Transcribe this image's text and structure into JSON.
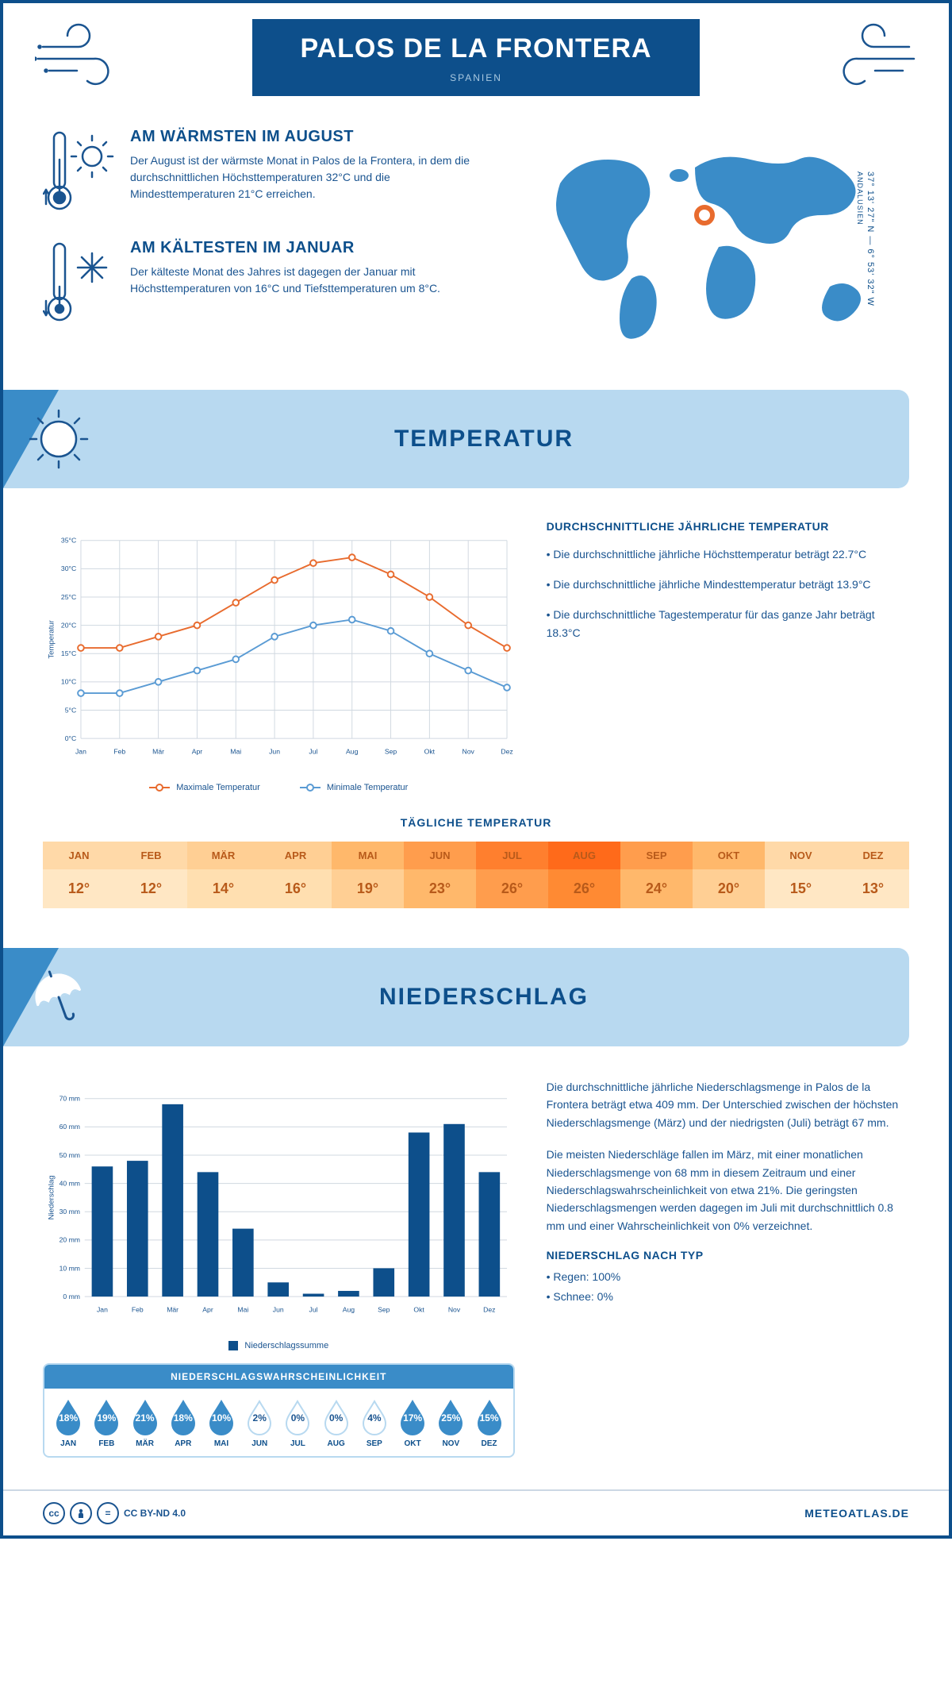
{
  "header": {
    "title": "PALOS DE LA FRONTERA",
    "country": "SPANIEN",
    "coords": "37° 13' 27\" N — 6° 53' 32\" W",
    "region": "ANDALUSIEN"
  },
  "facts": {
    "warm": {
      "title": "AM WÄRMSTEN IM AUGUST",
      "body": "Der August ist der wärmste Monat in Palos de la Frontera, in dem die durchschnittlichen Höchsttemperaturen 32°C und die Mindesttemperaturen 21°C erreichen."
    },
    "cold": {
      "title": "AM KÄLTESTEN IM JANUAR",
      "body": "Der kälteste Monat des Jahres ist dagegen der Januar mit Höchsttemperaturen von 16°C und Tiefsttemperaturen um 8°C."
    }
  },
  "temperature_section": {
    "heading": "TEMPERATUR",
    "side_title": "DURCHSCHNITTLICHE JÄHRLICHE TEMPERATUR",
    "side_bullets": [
      "• Die durchschnittliche jährliche Höchsttemperatur beträgt 22.7°C",
      "• Die durchschnittliche jährliche Mindesttemperatur beträgt 13.9°C",
      "• Die durchschnittliche Tagestemperatur für das ganze Jahr beträgt 18.3°C"
    ],
    "chart": {
      "type": "line",
      "months": [
        "Jan",
        "Feb",
        "Mär",
        "Apr",
        "Mai",
        "Jun",
        "Jul",
        "Aug",
        "Sep",
        "Okt",
        "Nov",
        "Dez"
      ],
      "yaxis_label": "Temperatur",
      "ylim": [
        0,
        35
      ],
      "ytick_step": 5,
      "ytick_suffix": "°C",
      "grid_color": "#d0d8e0",
      "series": [
        {
          "name": "Maximale Temperatur",
          "color": "#e86b2e",
          "values": [
            16,
            16,
            18,
            20,
            24,
            28,
            31,
            32,
            29,
            25,
            20,
            16
          ]
        },
        {
          "name": "Minimale Temperatur",
          "color": "#5a9bd4",
          "values": [
            8,
            8,
            10,
            12,
            14,
            18,
            20,
            21,
            19,
            15,
            12,
            9
          ]
        }
      ],
      "line_width": 2,
      "marker_size": 4
    },
    "daily": {
      "title": "TÄGLICHE TEMPERATUR",
      "months": [
        "JAN",
        "FEB",
        "MÄR",
        "APR",
        "MAI",
        "JUN",
        "JUL",
        "AUG",
        "SEP",
        "OKT",
        "NOV",
        "DEZ"
      ],
      "values": [
        "12°",
        "12°",
        "14°",
        "16°",
        "19°",
        "23°",
        "26°",
        "26°",
        "24°",
        "20°",
        "15°",
        "13°"
      ],
      "header_colors": [
        "#ffd9a8",
        "#ffd9a8",
        "#ffcf94",
        "#ffcf94",
        "#ffb86b",
        "#ff9d4d",
        "#ff7f2e",
        "#ff6a1a",
        "#ff9d4d",
        "#ffb86b",
        "#ffd9a8",
        "#ffd9a8"
      ],
      "value_colors": [
        "#ffe7c4",
        "#ffe7c4",
        "#ffdfb0",
        "#ffdfb0",
        "#ffcf94",
        "#ffb86b",
        "#ff9d4d",
        "#ff8a33",
        "#ffb86b",
        "#ffcf94",
        "#ffe7c4",
        "#ffe7c4"
      ],
      "text_color": "#b85a1a"
    }
  },
  "precip_section": {
    "heading": "NIEDERSCHLAG",
    "para1": "Die durchschnittliche jährliche Niederschlagsmenge in Palos de la Frontera beträgt etwa 409 mm. Der Unterschied zwischen der höchsten Niederschlagsmenge (März) und der niedrigsten (Juli) beträgt 67 mm.",
    "para2": "Die meisten Niederschläge fallen im März, mit einer monatlichen Niederschlagsmenge von 68 mm in diesem Zeitraum und einer Niederschlagswahrscheinlichkeit von etwa 21%. Die geringsten Niederschlagsmengen werden dagegen im Juli mit durchschnittlich 0.8 mm und einer Wahrscheinlichkeit von 0% verzeichnet.",
    "by_type_title": "NIEDERSCHLAG NACH TYP",
    "by_type_lines": [
      "• Regen: 100%",
      "• Schnee: 0%"
    ],
    "chart": {
      "type": "bar",
      "months": [
        "Jan",
        "Feb",
        "Mär",
        "Apr",
        "Mai",
        "Jun",
        "Jul",
        "Aug",
        "Sep",
        "Okt",
        "Nov",
        "Dez"
      ],
      "yaxis_label": "Niederschlag",
      "ylim": [
        0,
        70
      ],
      "ytick_step": 10,
      "ytick_suffix": " mm",
      "bar_color": "#0d4f8b",
      "grid_color": "#d0d8e0",
      "values": [
        46,
        48,
        68,
        44,
        24,
        5,
        1,
        2,
        10,
        58,
        61,
        44
      ],
      "legend_label": "Niederschlagssumme"
    },
    "probability": {
      "title": "NIEDERSCHLAGSWAHRSCHEINLICHKEIT",
      "months": [
        "JAN",
        "FEB",
        "MÄR",
        "APR",
        "MAI",
        "JUN",
        "JUL",
        "AUG",
        "SEP",
        "OKT",
        "NOV",
        "DEZ"
      ],
      "values": [
        "18%",
        "19%",
        "21%",
        "18%",
        "10%",
        "2%",
        "0%",
        "0%",
        "4%",
        "17%",
        "25%",
        "15%"
      ],
      "filled": [
        true,
        true,
        true,
        true,
        true,
        false,
        false,
        false,
        false,
        true,
        true,
        true
      ],
      "fill_color": "#3a8cc8",
      "empty_stroke": "#b8d9f0"
    }
  },
  "footer": {
    "license": "CC BY-ND 4.0",
    "brand": "METEOATLAS.DE"
  }
}
